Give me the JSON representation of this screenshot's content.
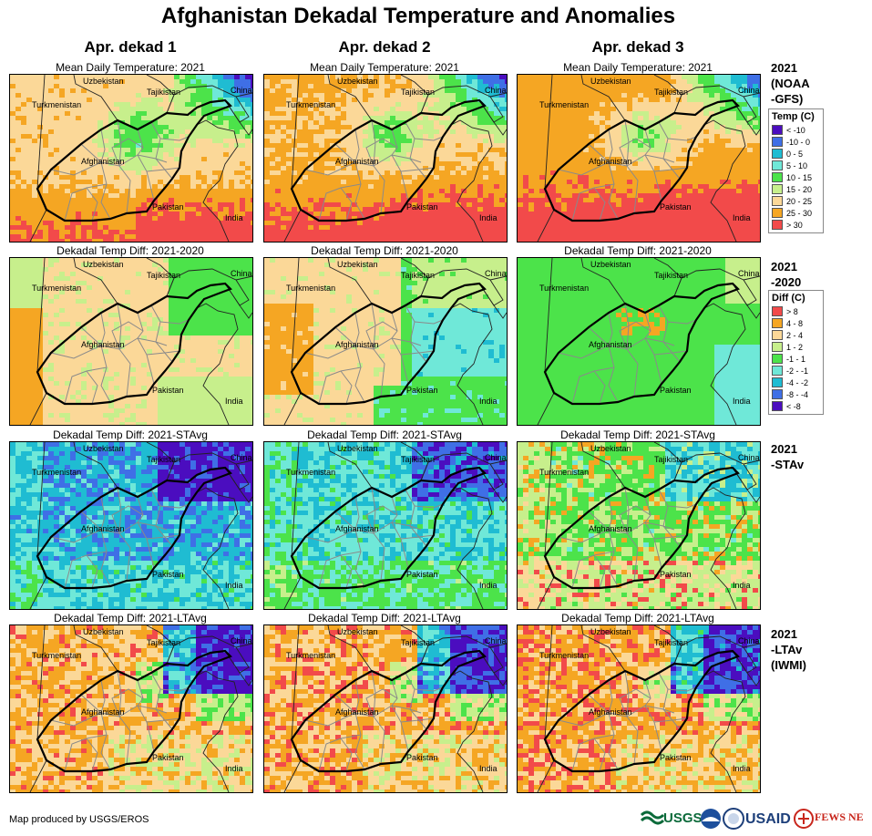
{
  "title": "Afghanistan Dekadal Temperature and Anomalies",
  "columns": [
    "Apr. dekad 1",
    "Apr. dekad 2",
    "Apr. dekad 3"
  ],
  "place_labels": {
    "uzbekistan": "Uzbekistan",
    "tajikistan": "Tajikistan",
    "china": "China",
    "turkmenistan": "Turkmenistan",
    "afghanistan": "Afghanistan",
    "pakistan": "Pakistan",
    "india": "India"
  },
  "rows": [
    {
      "panel_title": "Mean Daily Temperature: 2021",
      "label_lines": [
        "2021",
        "(NOAA",
        "-GFS)"
      ],
      "scheme": "temp"
    },
    {
      "panel_title": "Dekadal Temp Diff: 2021-2020",
      "label_lines": [
        "2021",
        "-2020"
      ],
      "scheme": "d2020"
    },
    {
      "panel_title": "Dekadal Temp Diff: 2021-STAvg",
      "label_lines": [
        "2021",
        "-STAv"
      ],
      "scheme": "dst"
    },
    {
      "panel_title": "Dekadal Temp Diff: 2021-LTAvg",
      "label_lines": [
        "2021",
        "-LTAv",
        "(IWMI)"
      ],
      "scheme": "dlt"
    }
  ],
  "legend_temp": {
    "heading": "Temp (C)",
    "items": [
      {
        "label": "< -10",
        "color": "#4b0dbf"
      },
      {
        "label": "-10 - 0",
        "color": "#3f6fe6"
      },
      {
        "label": "0 - 5",
        "color": "#1fbcd2"
      },
      {
        "label": "5 - 10",
        "color": "#6fe8d8"
      },
      {
        "label": "10 - 15",
        "color": "#4ce34a"
      },
      {
        "label": "15 - 20",
        "color": "#c7ef8c"
      },
      {
        "label": "20 - 25",
        "color": "#fbd898"
      },
      {
        "label": "25 - 30",
        "color": "#f5a623"
      },
      {
        "label": "> 30",
        "color": "#f24a4a"
      }
    ]
  },
  "legend_diff": {
    "heading": "Diff (C)",
    "items": [
      {
        "label": "> 8",
        "color": "#f24a4a"
      },
      {
        "label": "4 - 8",
        "color": "#f5a623"
      },
      {
        "label": "2 - 4",
        "color": "#fbd898"
      },
      {
        "label": "1 - 2",
        "color": "#c7ef8c"
      },
      {
        "label": "-1 - 1",
        "color": "#4ce34a"
      },
      {
        "label": "-2 - -1",
        "color": "#6fe8d8"
      },
      {
        "label": "-4 - -2",
        "color": "#1fbcd2"
      },
      {
        "label": "-8 - -4",
        "color": "#3f6fe6"
      },
      {
        "label": "< -8",
        "color": "#4b0dbf"
      }
    ]
  },
  "footer": "Map produced by USGS/EROS",
  "logos": {
    "usgs": "USGS",
    "usaid": "USAID",
    "fews": "FEWS NET"
  }
}
